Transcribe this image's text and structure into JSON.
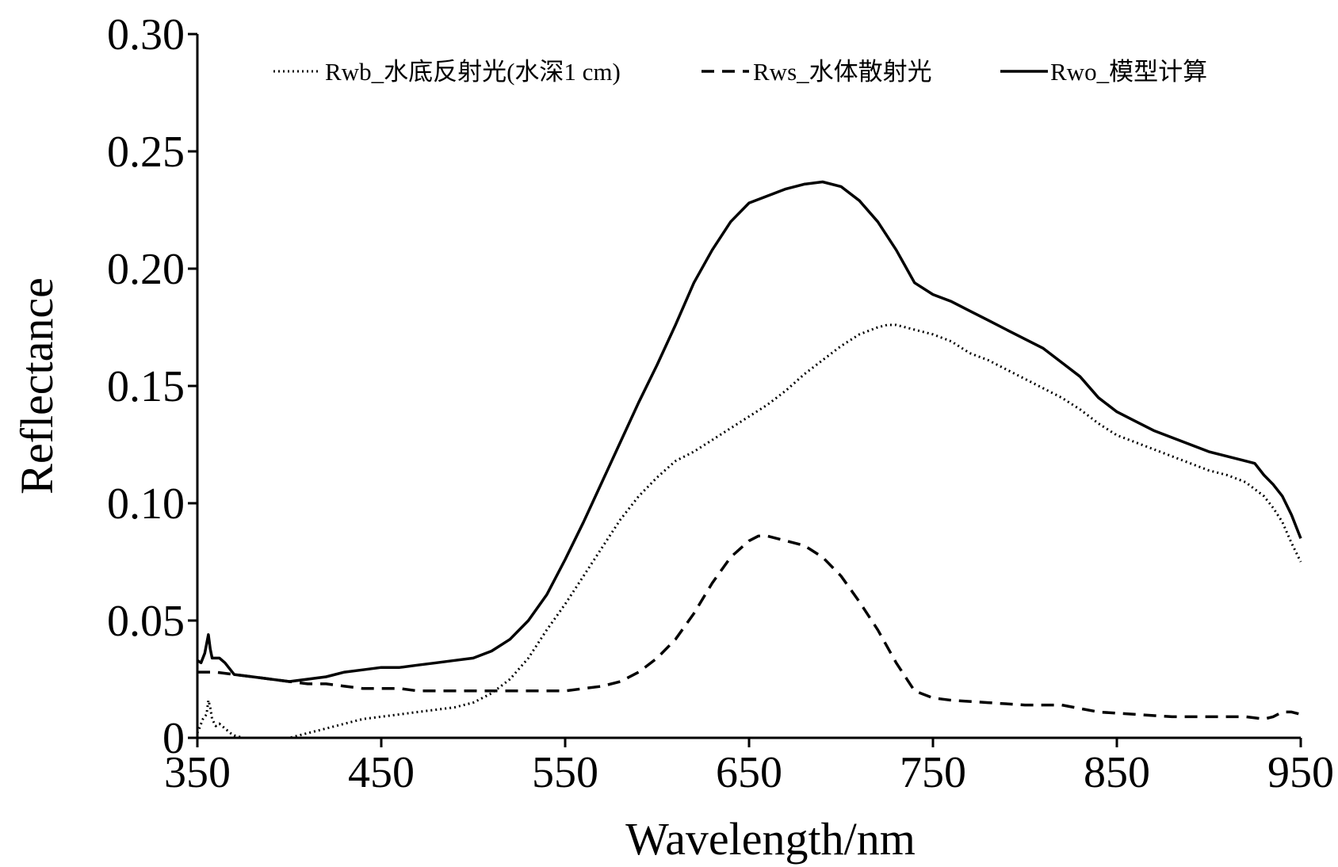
{
  "chart_data": {
    "type": "line",
    "title": "",
    "xlabel": "Wavelength/nm",
    "ylabel": "Reflectance",
    "xlim": [
      350,
      950
    ],
    "ylim": [
      0,
      0.3
    ],
    "x_ticks": [
      350,
      450,
      550,
      650,
      750,
      850,
      950
    ],
    "x_tick_labels": [
      "350",
      "450",
      "550",
      "650",
      "750",
      "850",
      "950"
    ],
    "y_ticks": [
      0,
      0.05,
      0.1,
      0.15,
      0.2,
      0.25,
      0.3
    ],
    "y_tick_labels": [
      "0",
      "0.05",
      "0.10",
      "0.15",
      "0.20",
      "0.25",
      "0.30"
    ],
    "grid": false,
    "legend_position": "top",
    "series": [
      {
        "name": "Rwb_水底反射光(水深1 cm)",
        "style": "dotted",
        "color": "#000000",
        "points": [
          [
            350,
            0.002
          ],
          [
            353,
            0.008
          ],
          [
            355,
            0.01
          ],
          [
            356,
            0.016
          ],
          [
            357,
            0.013
          ],
          [
            358,
            0.008
          ],
          [
            360,
            0.005
          ],
          [
            362,
            0.006
          ],
          [
            365,
            0.004
          ],
          [
            368,
            0.002
          ],
          [
            370,
            0.001
          ],
          [
            375,
            0.0
          ],
          [
            380,
            0.0
          ],
          [
            400,
            0.0
          ],
          [
            410,
            0.002
          ],
          [
            420,
            0.004
          ],
          [
            430,
            0.006
          ],
          [
            440,
            0.008
          ],
          [
            450,
            0.009
          ],
          [
            460,
            0.01
          ],
          [
            470,
            0.011
          ],
          [
            480,
            0.012
          ],
          [
            490,
            0.013
          ],
          [
            500,
            0.015
          ],
          [
            510,
            0.019
          ],
          [
            520,
            0.025
          ],
          [
            530,
            0.034
          ],
          [
            540,
            0.046
          ],
          [
            550,
            0.057
          ],
          [
            560,
            0.069
          ],
          [
            570,
            0.081
          ],
          [
            580,
            0.093
          ],
          [
            590,
            0.103
          ],
          [
            600,
            0.111
          ],
          [
            610,
            0.118
          ],
          [
            620,
            0.122
          ],
          [
            630,
            0.127
          ],
          [
            640,
            0.132
          ],
          [
            650,
            0.137
          ],
          [
            660,
            0.142
          ],
          [
            670,
            0.148
          ],
          [
            680,
            0.155
          ],
          [
            690,
            0.161
          ],
          [
            700,
            0.167
          ],
          [
            710,
            0.172
          ],
          [
            720,
            0.175
          ],
          [
            725,
            0.176
          ],
          [
            730,
            0.176
          ],
          [
            740,
            0.174
          ],
          [
            750,
            0.172
          ],
          [
            760,
            0.169
          ],
          [
            770,
            0.164
          ],
          [
            780,
            0.161
          ],
          [
            790,
            0.157
          ],
          [
            800,
            0.153
          ],
          [
            810,
            0.149
          ],
          [
            820,
            0.145
          ],
          [
            830,
            0.14
          ],
          [
            840,
            0.134
          ],
          [
            850,
            0.129
          ],
          [
            860,
            0.126
          ],
          [
            870,
            0.123
          ],
          [
            880,
            0.12
          ],
          [
            890,
            0.117
          ],
          [
            900,
            0.114
          ],
          [
            910,
            0.112
          ],
          [
            920,
            0.109
          ],
          [
            930,
            0.103
          ],
          [
            935,
            0.098
          ],
          [
            940,
            0.092
          ],
          [
            945,
            0.083
          ],
          [
            950,
            0.075
          ]
        ]
      },
      {
        "name": "Rws_水体散射光",
        "style": "dashed",
        "color": "#000000",
        "points": [
          [
            350,
            0.028
          ],
          [
            360,
            0.028
          ],
          [
            370,
            0.027
          ],
          [
            380,
            0.026
          ],
          [
            390,
            0.025
          ],
          [
            400,
            0.024
          ],
          [
            410,
            0.023
          ],
          [
            420,
            0.023
          ],
          [
            430,
            0.022
          ],
          [
            440,
            0.021
          ],
          [
            450,
            0.021
          ],
          [
            460,
            0.021
          ],
          [
            470,
            0.02
          ],
          [
            480,
            0.02
          ],
          [
            490,
            0.02
          ],
          [
            500,
            0.02
          ],
          [
            510,
            0.02
          ],
          [
            520,
            0.02
          ],
          [
            530,
            0.02
          ],
          [
            540,
            0.02
          ],
          [
            550,
            0.02
          ],
          [
            560,
            0.021
          ],
          [
            570,
            0.022
          ],
          [
            580,
            0.024
          ],
          [
            590,
            0.028
          ],
          [
            600,
            0.034
          ],
          [
            610,
            0.042
          ],
          [
            620,
            0.053
          ],
          [
            630,
            0.066
          ],
          [
            640,
            0.077
          ],
          [
            650,
            0.084
          ],
          [
            655,
            0.086
          ],
          [
            660,
            0.086
          ],
          [
            670,
            0.084
          ],
          [
            680,
            0.082
          ],
          [
            690,
            0.077
          ],
          [
            700,
            0.069
          ],
          [
            710,
            0.058
          ],
          [
            720,
            0.046
          ],
          [
            730,
            0.032
          ],
          [
            740,
            0.02
          ],
          [
            750,
            0.017
          ],
          [
            760,
            0.016
          ],
          [
            780,
            0.015
          ],
          [
            800,
            0.014
          ],
          [
            820,
            0.014
          ],
          [
            840,
            0.011
          ],
          [
            860,
            0.01
          ],
          [
            880,
            0.009
          ],
          [
            900,
            0.009
          ],
          [
            920,
            0.009
          ],
          [
            930,
            0.008
          ],
          [
            935,
            0.009
          ],
          [
            940,
            0.011
          ],
          [
            945,
            0.011
          ],
          [
            950,
            0.01
          ]
        ]
      },
      {
        "name": "Rwo_模型计算",
        "style": "solid",
        "color": "#000000",
        "points": [
          [
            350,
            0.033
          ],
          [
            352,
            0.032
          ],
          [
            354,
            0.036
          ],
          [
            355,
            0.04
          ],
          [
            356,
            0.044
          ],
          [
            357,
            0.038
          ],
          [
            358,
            0.034
          ],
          [
            360,
            0.034
          ],
          [
            362,
            0.034
          ],
          [
            365,
            0.032
          ],
          [
            368,
            0.029
          ],
          [
            370,
            0.027
          ],
          [
            380,
            0.026
          ],
          [
            390,
            0.025
          ],
          [
            400,
            0.024
          ],
          [
            410,
            0.025
          ],
          [
            420,
            0.026
          ],
          [
            430,
            0.028
          ],
          [
            440,
            0.029
          ],
          [
            450,
            0.03
          ],
          [
            460,
            0.03
          ],
          [
            470,
            0.031
          ],
          [
            480,
            0.032
          ],
          [
            490,
            0.033
          ],
          [
            500,
            0.034
          ],
          [
            510,
            0.037
          ],
          [
            520,
            0.042
          ],
          [
            530,
            0.05
          ],
          [
            540,
            0.061
          ],
          [
            550,
            0.076
          ],
          [
            560,
            0.092
          ],
          [
            570,
            0.109
          ],
          [
            580,
            0.126
          ],
          [
            590,
            0.143
          ],
          [
            600,
            0.159
          ],
          [
            610,
            0.176
          ],
          [
            620,
            0.194
          ],
          [
            630,
            0.208
          ],
          [
            640,
            0.22
          ],
          [
            650,
            0.228
          ],
          [
            660,
            0.231
          ],
          [
            670,
            0.234
          ],
          [
            680,
            0.236
          ],
          [
            690,
            0.237
          ],
          [
            700,
            0.235
          ],
          [
            710,
            0.229
          ],
          [
            720,
            0.22
          ],
          [
            730,
            0.208
          ],
          [
            740,
            0.194
          ],
          [
            750,
            0.189
          ],
          [
            760,
            0.186
          ],
          [
            770,
            0.182
          ],
          [
            780,
            0.178
          ],
          [
            790,
            0.174
          ],
          [
            800,
            0.17
          ],
          [
            810,
            0.166
          ],
          [
            820,
            0.16
          ],
          [
            830,
            0.154
          ],
          [
            840,
            0.145
          ],
          [
            850,
            0.139
          ],
          [
            860,
            0.135
          ],
          [
            870,
            0.131
          ],
          [
            880,
            0.128
          ],
          [
            890,
            0.125
          ],
          [
            900,
            0.122
          ],
          [
            910,
            0.12
          ],
          [
            920,
            0.118
          ],
          [
            925,
            0.117
          ],
          [
            930,
            0.112
          ],
          [
            935,
            0.108
          ],
          [
            940,
            0.103
          ],
          [
            945,
            0.095
          ],
          [
            950,
            0.085
          ]
        ]
      }
    ]
  }
}
